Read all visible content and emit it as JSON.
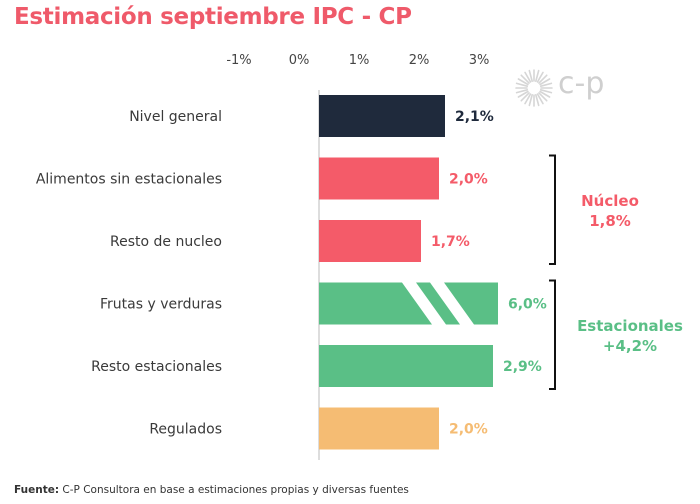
{
  "title": "Estimación septiembre IPC - CP",
  "source": {
    "prefix": "Fuente:",
    "text": "C-P Consultora en base a estimaciones propias y diversas fuentes"
  },
  "logo": {
    "text": "c-p",
    "icon": "sunburst-logo-icon"
  },
  "colors": {
    "title": "#ef5a6a",
    "navy": "#1f2a3c",
    "red": "#f45b69",
    "green": "#5abf86",
    "orange": "#f5bc73",
    "bracket": "#111111"
  },
  "chart_data": {
    "type": "bar",
    "orientation": "horizontal",
    "x_ticks": [
      "-1%",
      "0%",
      "1%",
      "2%",
      "3%"
    ],
    "xlim": [
      -1,
      3
    ],
    "categories": [
      "Nivel general",
      "Alimentos sin estacionales",
      "Resto de nucleo",
      "Frutas y verduras",
      "Resto estacionales",
      "Regulados"
    ],
    "values": [
      2.1,
      2.0,
      1.7,
      6.0,
      2.9,
      2.0
    ],
    "value_labels": [
      "2,1%",
      "2,0%",
      "1,7%",
      "6,0%",
      "2,9%",
      "2,0%"
    ],
    "bar_colors": [
      "#1f2a3c",
      "#f45b69",
      "#f45b69",
      "#5abf86",
      "#5abf86",
      "#f5bc73"
    ],
    "label_colors": [
      "#1f2a3c",
      "#f45b69",
      "#f45b69",
      "#5abf86",
      "#5abf86",
      "#f5bc73"
    ],
    "axis_break": {
      "category": "Frutas y verduras"
    },
    "groups": [
      {
        "label_line1": "Núcleo",
        "label_line2": "1,8%",
        "rows": [
          1,
          2
        ],
        "color": "#f45b69"
      },
      {
        "label_line1": "Estacionales",
        "label_line2": "+4,2%",
        "rows": [
          3,
          4
        ],
        "color": "#5abf86"
      }
    ]
  }
}
